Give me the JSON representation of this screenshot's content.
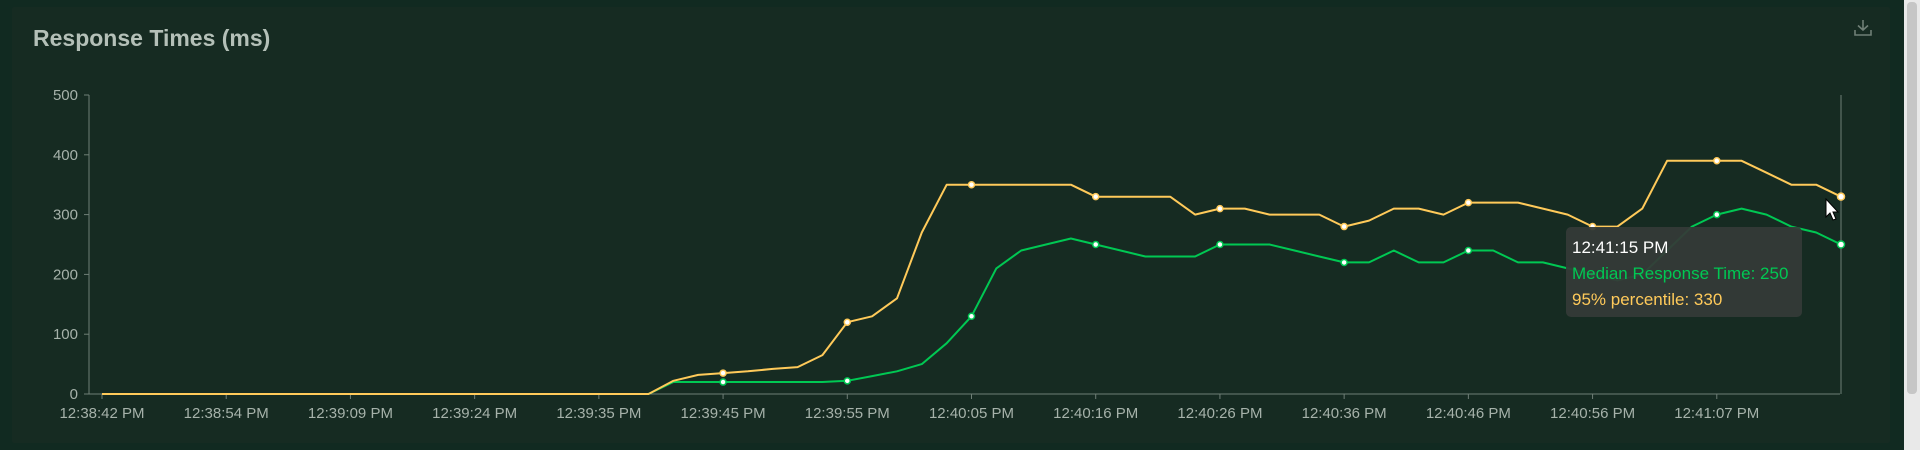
{
  "panel": {
    "title": "Response Times (ms)"
  },
  "toolbar": {
    "download_icon": "download-icon"
  },
  "colors": {
    "background": "#162b22",
    "median": "#00c853",
    "p95": "#ffca5a",
    "axis": "#6f7f76",
    "text": "#a6b2aa"
  },
  "tooltip": {
    "time": "12:41:15 PM",
    "median_label": "Median Response Time: 250",
    "p95_label": "95% percentile: 330"
  },
  "chart_data": {
    "type": "line",
    "title": "Response Times (ms)",
    "xlabel": "",
    "ylabel": "",
    "ylim": [
      0,
      500
    ],
    "yticks": [
      0,
      100,
      200,
      300,
      400,
      500
    ],
    "xticks": [
      "12:38:42 PM",
      "12:38:54 PM",
      "12:39:09 PM",
      "12:39:24 PM",
      "12:39:35 PM",
      "12:39:45 PM",
      "12:39:55 PM",
      "12:40:05 PM",
      "12:40:16 PM",
      "12:40:26 PM",
      "12:40:36 PM",
      "12:40:46 PM",
      "12:40:56 PM",
      "12:41:07 PM"
    ],
    "grid": false,
    "series": [
      {
        "name": "Median Response Time",
        "values": [
          0,
          0,
          0,
          0,
          0,
          0,
          0,
          0,
          0,
          0,
          0,
          0,
          0,
          0,
          0,
          0,
          0,
          0,
          0,
          0,
          0,
          0,
          0,
          20,
          20,
          20,
          20,
          20,
          20,
          20,
          22,
          30,
          38,
          50,
          85,
          130,
          210,
          240,
          250,
          260,
          250,
          240,
          230,
          230,
          230,
          250,
          250,
          250,
          240,
          230,
          220,
          220,
          240,
          220,
          220,
          240,
          240,
          220,
          220,
          210,
          200,
          190,
          200,
          240,
          280,
          300,
          310,
          300,
          280,
          270,
          250
        ]
      },
      {
        "name": "95% percentile",
        "values": [
          0,
          0,
          0,
          0,
          0,
          0,
          0,
          0,
          0,
          0,
          0,
          0,
          0,
          0,
          0,
          0,
          0,
          0,
          0,
          0,
          0,
          0,
          0,
          22,
          32,
          35,
          38,
          42,
          45,
          65,
          120,
          130,
          160,
          270,
          350,
          350,
          350,
          350,
          350,
          350,
          330,
          330,
          330,
          330,
          300,
          310,
          310,
          300,
          300,
          300,
          280,
          290,
          310,
          310,
          300,
          320,
          320,
          320,
          310,
          300,
          280,
          280,
          310,
          390,
          390,
          390,
          390,
          370,
          350,
          350,
          330
        ]
      }
    ]
  }
}
